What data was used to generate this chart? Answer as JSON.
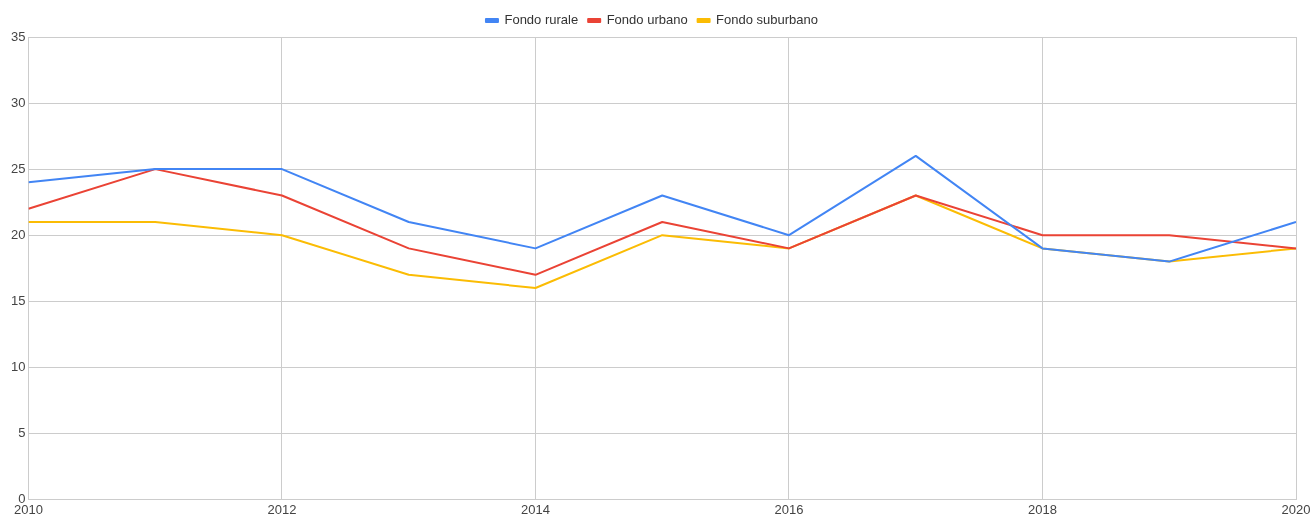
{
  "chart_data": {
    "type": "line",
    "x": [
      2010,
      2011,
      2012,
      2013,
      2014,
      2015,
      2016,
      2017,
      2018,
      2019,
      2020
    ],
    "series": [
      {
        "name": "Fondo rurale",
        "color": "#4285f4",
        "values": [
          24,
          25,
          25,
          21,
          19,
          23,
          20,
          26,
          19,
          18,
          21
        ]
      },
      {
        "name": "Fondo urbano",
        "color": "#ea4335",
        "values": [
          22,
          25,
          23,
          19,
          17,
          21,
          19,
          23,
          20,
          20,
          19
        ]
      },
      {
        "name": "Fondo suburbano",
        "color": "#fbbc04",
        "values": [
          21,
          21,
          20,
          17,
          16,
          20,
          19,
          23,
          19,
          18,
          19
        ]
      }
    ],
    "xlim": [
      2010,
      2020
    ],
    "xticks": [
      2010,
      2012,
      2014,
      2016,
      2018,
      2020
    ],
    "ylim": [
      0,
      35
    ],
    "yticks": [
      0,
      5,
      10,
      15,
      20,
      25,
      30,
      35
    ],
    "grid": true,
    "legend": "top",
    "marker": "none",
    "line_style": "solid"
  }
}
